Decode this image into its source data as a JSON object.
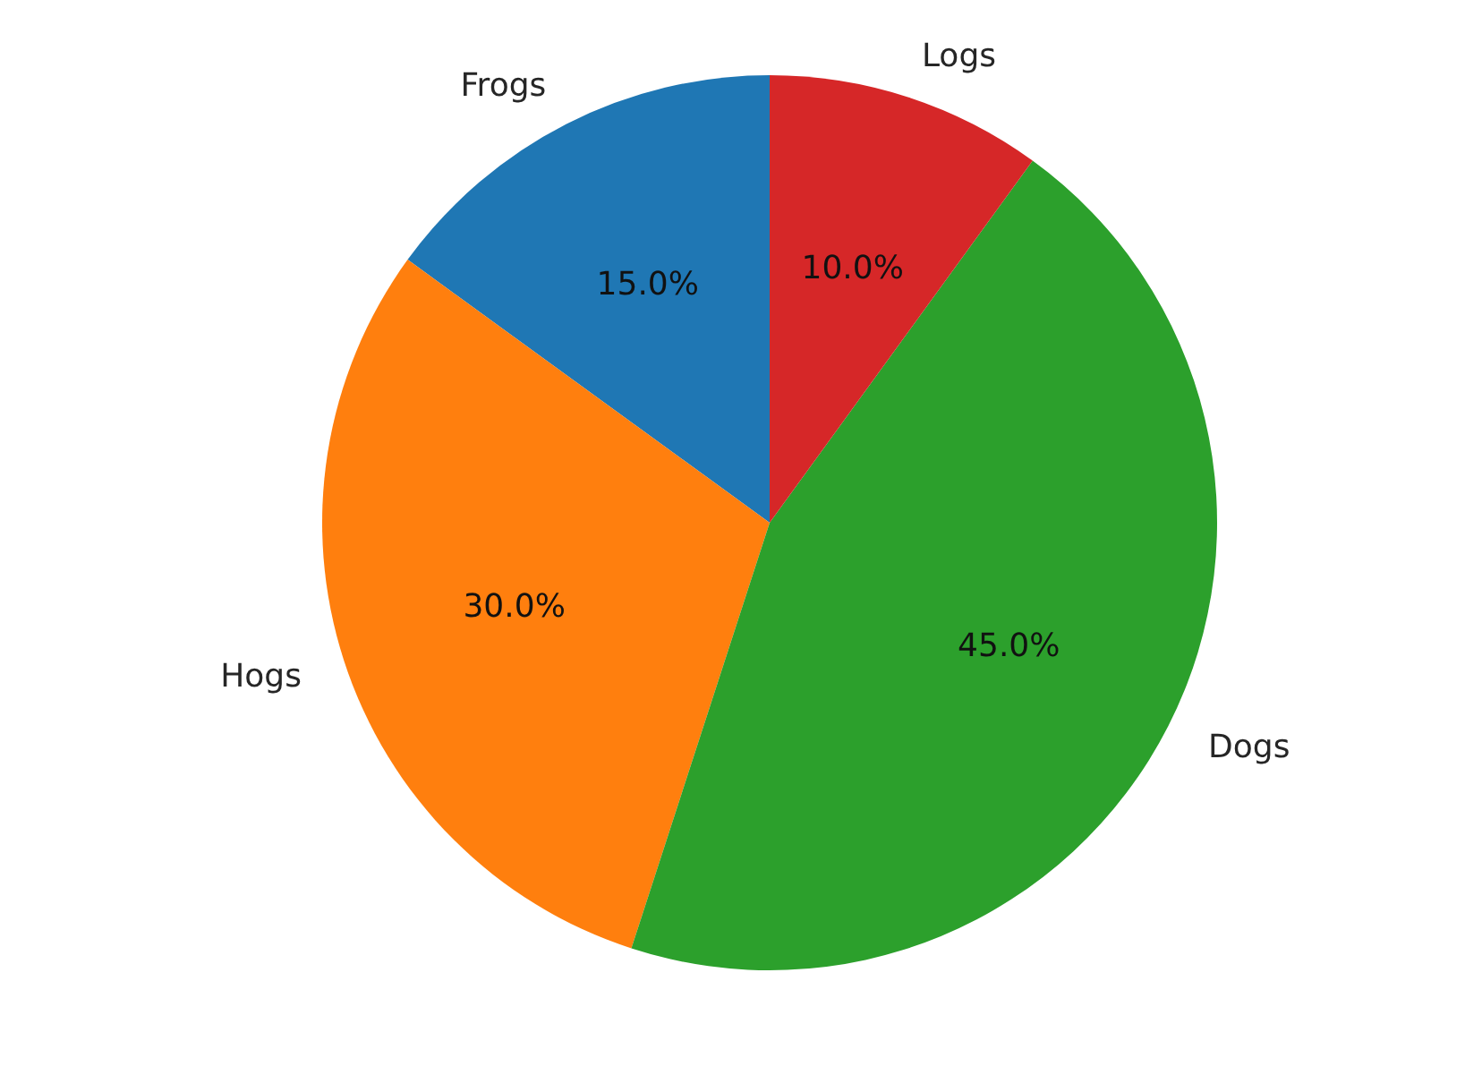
{
  "chart_data": {
    "type": "pie",
    "categories": [
      "Frogs",
      "Hogs",
      "Dogs",
      "Logs"
    ],
    "values": [
      15,
      30,
      45,
      10
    ],
    "colors": [
      "#1f77b4",
      "#ff7f0e",
      "#2ca02c",
      "#d62728"
    ],
    "value_labels": [
      "15.0%",
      "30.0%",
      "45.0%",
      "10.0%"
    ]
  }
}
